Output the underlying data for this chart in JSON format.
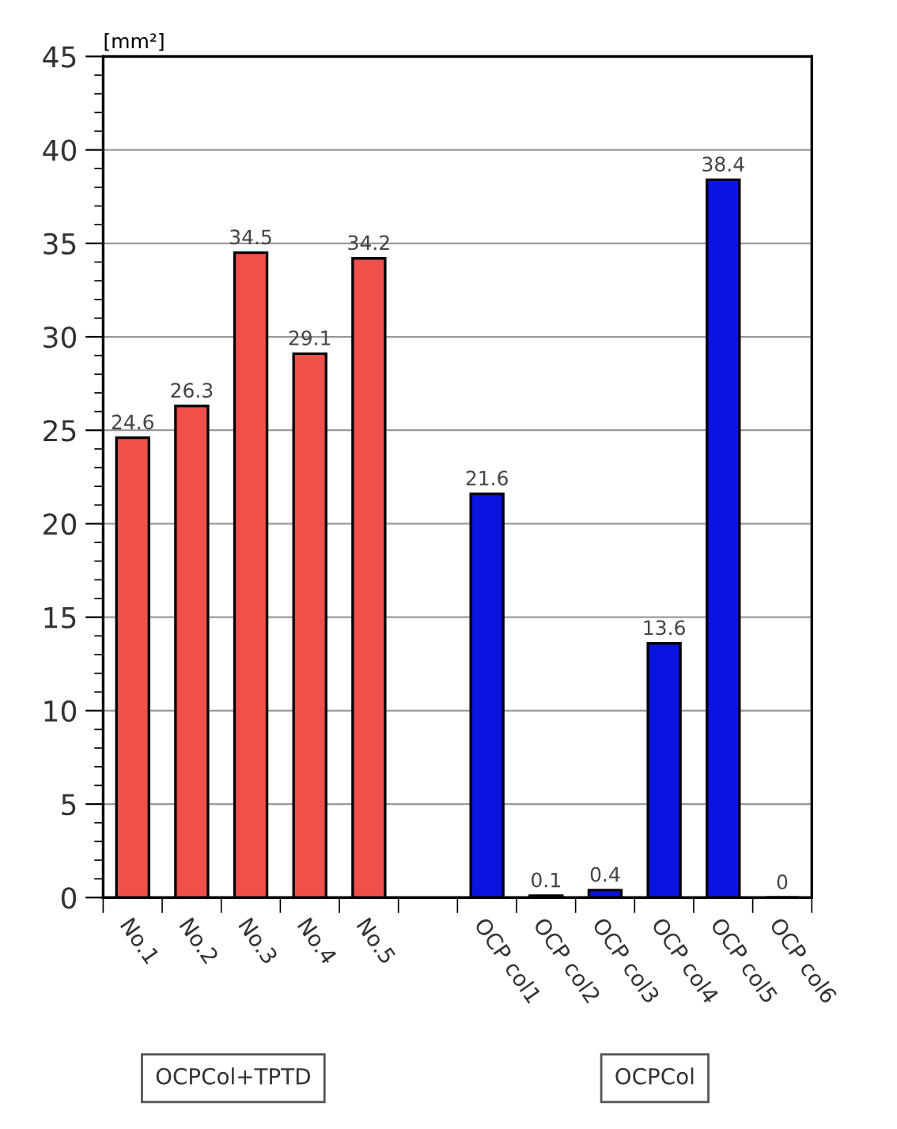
{
  "chart_data": {
    "type": "bar",
    "ylabel": "[mm²]",
    "categories": [
      "No.1",
      "No.2",
      "No.3",
      "No.4",
      "No.5",
      null,
      "OCP col1",
      "OCP col2",
      "OCP col3",
      "OCP col4",
      "OCP col5",
      "OCP col6"
    ],
    "values": [
      24.6,
      26.3,
      34.5,
      29.1,
      34.2,
      null,
      21.6,
      0.1,
      0.4,
      13.6,
      38.4,
      0
    ],
    "value_labels": [
      "24.6",
      "26.3",
      "34.5",
      "29.1",
      "34.2",
      null,
      "21.6",
      "0.1",
      "0.4",
      "13.6",
      "38.4",
      "0"
    ],
    "colors": [
      "#f0504a",
      "#f0504a",
      "#f0504a",
      "#f0504a",
      "#f0504a",
      "#f0504a",
      "#0a14e0",
      "#0a14e0",
      "#0a14e0",
      "#0a14e0",
      "#0a14e0",
      "#0a14e0"
    ],
    "ylim": [
      0,
      45
    ],
    "yticks": [
      0,
      5,
      10,
      15,
      20,
      25,
      30,
      35,
      40,
      45
    ],
    "grid": "y",
    "annotations": [
      "OCPCol+TPTD",
      "OCPCol"
    ]
  }
}
